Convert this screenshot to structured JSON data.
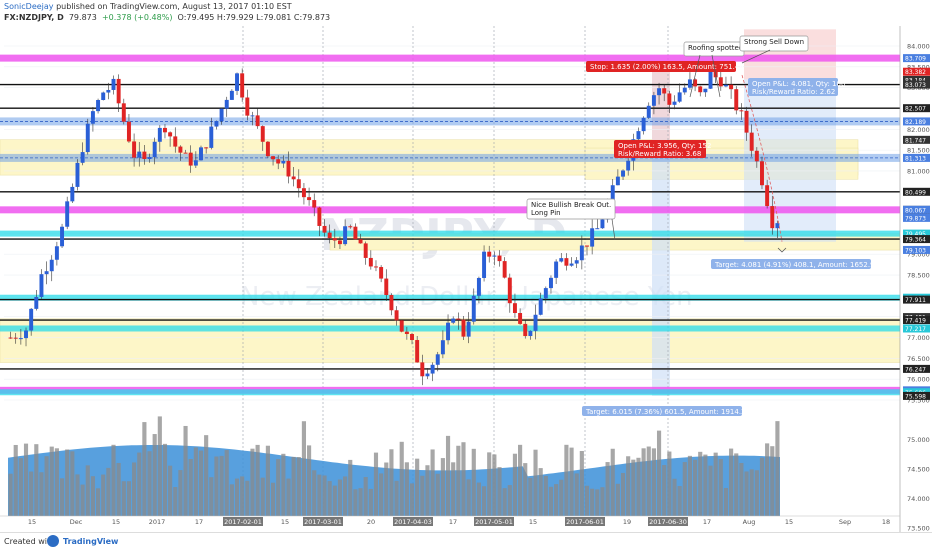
{
  "header": {
    "author": "SonicDeejay",
    "published": "published on TradingView.com, August 13, 2017 01:10 EST",
    "symbol": "FX:NZDJPY, D",
    "last": "79.873",
    "change": "+0.378 (+0.48%)",
    "ohlc": "O:79.495 H:79.929 L:79.081 C:79.873"
  },
  "watermark": {
    "symbol": "NZDJPY, D",
    "name": "New Zealand Dollar / Japanese Yen"
  },
  "footer": {
    "created_with": "Created with",
    "brand": "TradingView"
  },
  "annotations": {
    "roofing": "Roofing spotted",
    "strong_sell": "Strong Sell Down",
    "bullish": [
      "Nice Bullish Break Out.",
      "Long Pin"
    ],
    "stop_box": "Stop: 1.635 (2.00%) 163.5, Amount: 751.48",
    "open_pnl_right": [
      "Open P&L: 4.081, Qty: 100",
      "Risk/Reward Ratio: 2.62"
    ],
    "open_pnl_mid": [
      "Open P&L: 3.956, Qty: 152",
      "Risk/Reward Ratio: 3.68"
    ],
    "target_right": "Target: 4.081 (4.91%) 408.1, Amount: 1652.96",
    "target_bottom": "Target: 6.015 (7.36%) 601.5, Amount: 1914.28"
  },
  "colors": {
    "up": "#2a5fd6",
    "down": "#e02424",
    "magenta_band": "#ee55ee",
    "blue_band": "#6fa0e6",
    "cyan_band": "#28dbe9",
    "yellow_zone": "#fdf6c8",
    "volume": "#3b8fd8"
  },
  "chart_data": {
    "type": "candlestick",
    "price_axis_ticks": [
      "84.000",
      "83.500",
      "83.000",
      "82.500",
      "82.000",
      "81.500",
      "81.000",
      "80.500",
      "80.000",
      "79.500",
      "79.000",
      "78.500",
      "78.000",
      "77.500",
      "77.000",
      "76.500",
      "76.000",
      "75.500",
      "75.000",
      "74.500",
      "74.000",
      "73.500"
    ],
    "price_labels": [
      {
        "value": "83.709",
        "color": "#4a7fe0"
      },
      {
        "value": "83.382",
        "color": "#e02424"
      },
      {
        "value": "83.184",
        "color": "#333333"
      },
      {
        "value": "83.073",
        "color": "#333333"
      },
      {
        "value": "82.507",
        "color": "#222222"
      },
      {
        "value": "82.189",
        "color": "#4a7fe0"
      },
      {
        "value": "81.747",
        "color": "#333333"
      },
      {
        "value": "81.313",
        "color": "#4a7fe0"
      },
      {
        "value": "80.499",
        "color": "#222222"
      },
      {
        "value": "80.066",
        "color": "#333333"
      },
      {
        "value": "80.067",
        "color": "#4a7fe0"
      },
      {
        "value": "79.873",
        "color": "#4a7fe0"
      },
      {
        "value": "79.495",
        "color": "#28c8d8"
      },
      {
        "value": "79.364",
        "color": "#222222"
      },
      {
        "value": "79.103",
        "color": "#4a7fe0"
      },
      {
        "value": "77.956",
        "color": "#28c8d8"
      },
      {
        "value": "77.911",
        "color": "#222222"
      },
      {
        "value": "77.491",
        "color": "#333333"
      },
      {
        "value": "77.419",
        "color": "#222222"
      },
      {
        "value": "77.217",
        "color": "#28c8d8"
      },
      {
        "value": "76.247",
        "color": "#222222"
      },
      {
        "value": "75.732",
        "color": "#4a7fe0"
      },
      {
        "value": "75.686",
        "color": "#28c8d8"
      },
      {
        "value": "75.598",
        "color": "#222222"
      }
    ],
    "time_axis": [
      "15",
      "Dec",
      "15",
      "2017",
      "17",
      "2017-02-01",
      "15",
      "2017-03-01",
      "20",
      "2017-04-03",
      "17",
      "2017-05-01",
      "15",
      "2017-06-01",
      "19",
      "2017-06-30",
      "17",
      "Aug",
      "15",
      "Sep",
      "18"
    ],
    "levels": {
      "magenta": [
        83.709,
        80.066,
        75.732
      ],
      "black": [
        83.073,
        82.507,
        80.499,
        79.364,
        77.911,
        77.419,
        76.247
      ],
      "blue": [
        82.189,
        81.313
      ],
      "cyan": [
        79.495,
        77.956,
        77.217,
        75.686
      ]
    },
    "path": [
      [
        0,
        77.0
      ],
      [
        3,
        77.2
      ],
      [
        6,
        78.5
      ],
      [
        8,
        79.0
      ],
      [
        10,
        79.6
      ],
      [
        12,
        80.6
      ],
      [
        14,
        81.6
      ],
      [
        16,
        82.4
      ],
      [
        18,
        82.9
      ],
      [
        20,
        83.05
      ],
      [
        22,
        82.2
      ],
      [
        24,
        81.4
      ],
      [
        26,
        81.2
      ],
      [
        28,
        81.8
      ],
      [
        30,
        82.1
      ],
      [
        32,
        81.6
      ],
      [
        34,
        81.3
      ],
      [
        36,
        81.2
      ],
      [
        38,
        81.7
      ],
      [
        40,
        82.2
      ],
      [
        42,
        82.8
      ],
      [
        44,
        83.3
      ],
      [
        46,
        82.5
      ],
      [
        48,
        82.0
      ],
      [
        50,
        81.5
      ],
      [
        52,
        81.2
      ],
      [
        54,
        81.0
      ],
      [
        56,
        80.6
      ],
      [
        58,
        80.2
      ],
      [
        60,
        79.7
      ],
      [
        62,
        79.3
      ],
      [
        64,
        79.4
      ],
      [
        66,
        79.6
      ],
      [
        68,
        79.1
      ],
      [
        70,
        78.8
      ],
      [
        72,
        78.3
      ],
      [
        74,
        77.8
      ],
      [
        76,
        77.2
      ],
      [
        78,
        76.8
      ],
      [
        80,
        76.2
      ],
      [
        82,
        76.4
      ],
      [
        84,
        76.8
      ],
      [
        86,
        77.6
      ],
      [
        88,
        77.1
      ],
      [
        90,
        77.9
      ],
      [
        92,
        78.9
      ],
      [
        94,
        79.1
      ],
      [
        96,
        78.4
      ],
      [
        98,
        77.5
      ],
      [
        100,
        76.9
      ],
      [
        102,
        77.6
      ],
      [
        104,
        78.2
      ],
      [
        106,
        78.8
      ],
      [
        108,
        78.9
      ],
      [
        110,
        79.0
      ],
      [
        112,
        79.3
      ],
      [
        114,
        79.6
      ],
      [
        116,
        80.2
      ],
      [
        118,
        80.8
      ],
      [
        120,
        81.4
      ],
      [
        122,
        82.1
      ],
      [
        124,
        82.7
      ],
      [
        126,
        83.0
      ],
      [
        128,
        82.6
      ],
      [
        130,
        82.9
      ],
      [
        132,
        83.1
      ],
      [
        134,
        82.8
      ],
      [
        136,
        83.3
      ],
      [
        138,
        83.2
      ],
      [
        140,
        82.8
      ],
      [
        142,
        82.3
      ],
      [
        144,
        81.6
      ],
      [
        146,
        80.8
      ],
      [
        148,
        79.8
      ],
      [
        150,
        79.87
      ]
    ],
    "volume_bars": 150,
    "volume_axis": "0"
  }
}
